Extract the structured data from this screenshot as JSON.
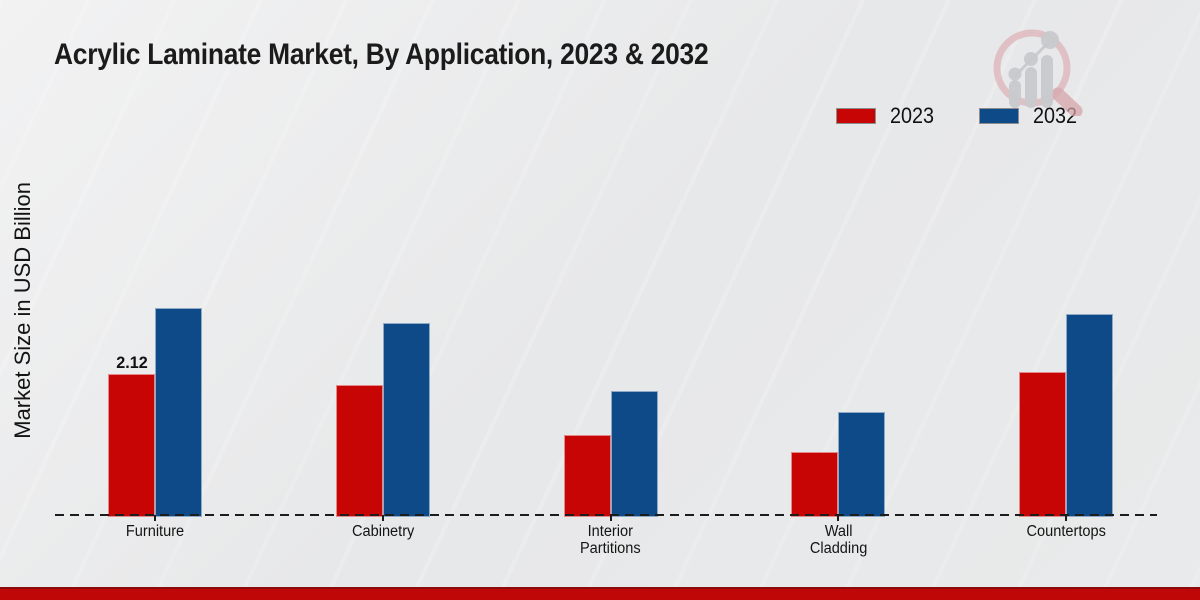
{
  "title": "Acrylic Laminate Market, By Application, 2023 & 2032",
  "ylabel": "Market Size in USD Billion",
  "legend": [
    {
      "label": "2023",
      "color": "#c70505"
    },
    {
      "label": "2032",
      "color": "#0d4a87"
    }
  ],
  "chart_data": {
    "type": "bar",
    "title": "Acrylic Laminate Market, By Application, 2023 & 2032",
    "xlabel": "",
    "ylabel": "Market Size in USD Billion",
    "categories": [
      "Furniture",
      "Cabinetry",
      "Interior Partitions",
      "Wall Cladding",
      "Countertops"
    ],
    "category_label_lines": [
      [
        "Furniture"
      ],
      [
        "Cabinetry"
      ],
      [
        "Interior",
        "Partitions"
      ],
      [
        "Wall",
        "Cladding"
      ],
      [
        "Countertops"
      ]
    ],
    "series": [
      {
        "name": "2023",
        "color": "#c70505",
        "values": [
          2.12,
          1.95,
          1.22,
          0.97,
          2.15
        ]
      },
      {
        "name": "2032",
        "color": "#0d4a87",
        "values": [
          3.1,
          2.87,
          1.86,
          1.55,
          3.01
        ]
      }
    ],
    "shown_value_labels": [
      {
        "category_index": 0,
        "series_index": 0,
        "label": "2.12"
      }
    ],
    "ylim": [
      0,
      3.5
    ],
    "grid": false,
    "axis_style": "dashed-baseline-only",
    "legend_position": "top-right"
  },
  "logo": {
    "name": "magnifier-bar-chart-logo",
    "ring_color": "#dcaeb3",
    "handle_color": "#d5a3a9",
    "bars_color": "#c5c6c9"
  },
  "footer_bar": {
    "top_edge_color": "#8a0b0b",
    "fill_color": "#c00707"
  }
}
